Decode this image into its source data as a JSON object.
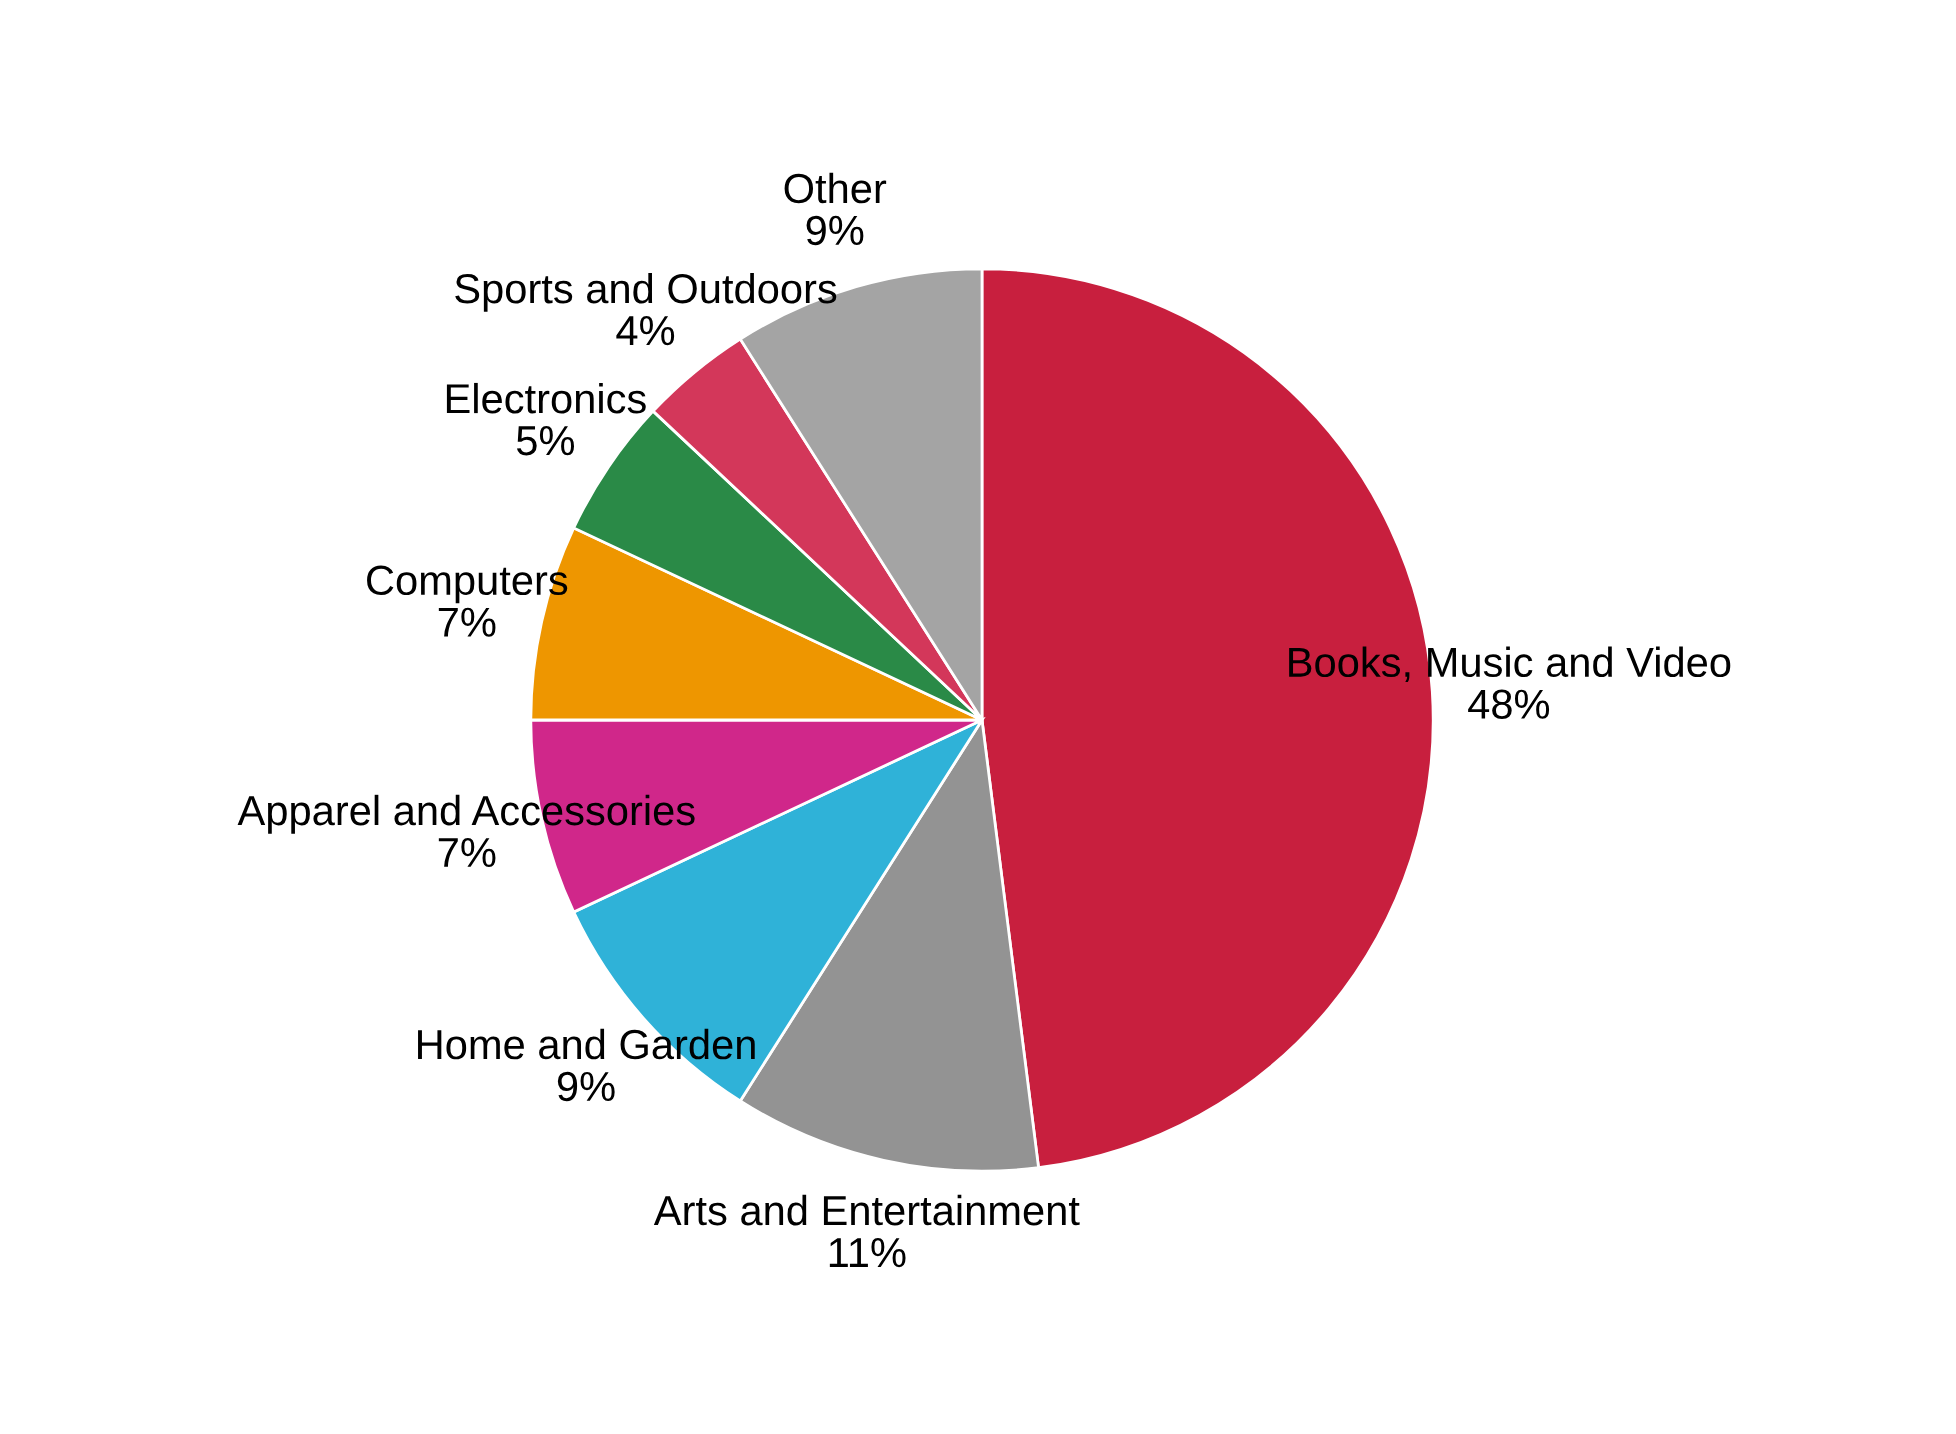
{
  "chart_data": {
    "type": "pie",
    "categories": [
      "Books, Music and Video",
      "Arts and Entertainment",
      "Home and Garden",
      "Apparel and Accessories",
      "Computers",
      "Electronics",
      "Sports and Outdoors",
      "Other"
    ],
    "values": [
      48,
      11,
      9,
      7,
      7,
      5,
      4,
      9
    ],
    "value_labels": [
      "48%",
      "11%",
      "9%",
      "7%",
      "7%",
      "5%",
      "4%",
      "9%"
    ],
    "colors": [
      "#c81f3e",
      "#939393",
      "#2fb2d8",
      "#d0278a",
      "#ee9600",
      "#2a8a47",
      "#d3375a",
      "#a4a4a4"
    ]
  }
}
